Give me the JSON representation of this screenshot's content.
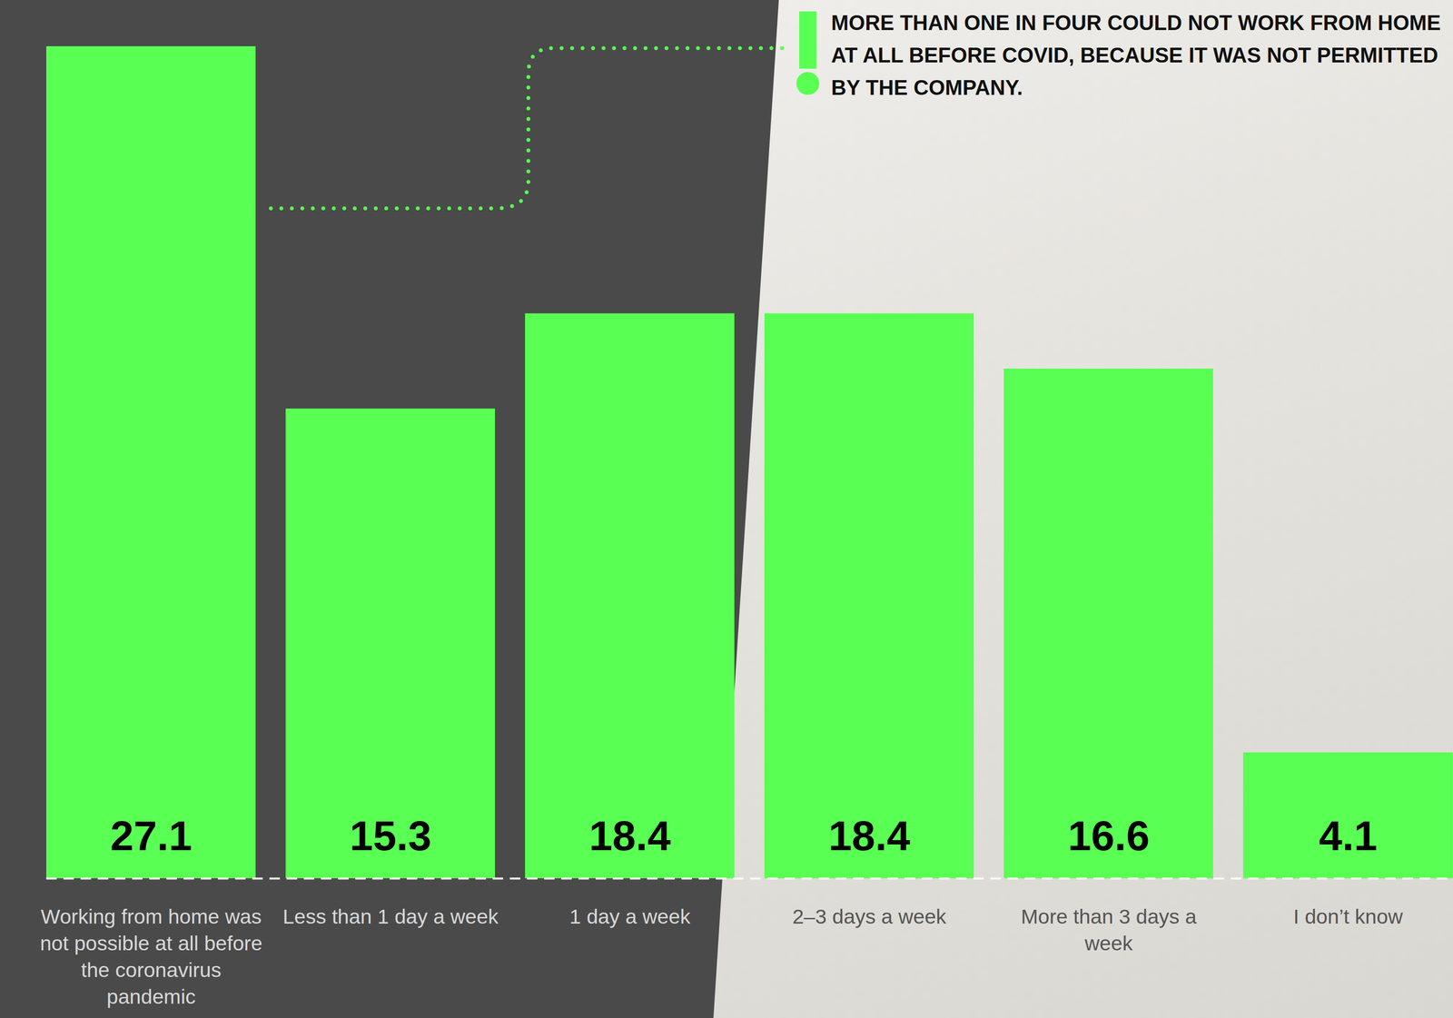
{
  "chart_data": {
    "type": "bar",
    "categories": [
      "Working from home was not possible at all before the coronavirus pandemic",
      "Less than 1 day a week",
      "1 day a week",
      "2–3 days a week",
      "More than 3 days a week",
      "I don’t know"
    ],
    "values": [
      27.1,
      15.3,
      18.4,
      18.4,
      16.6,
      4.1
    ],
    "color": "#59ff52",
    "ylim": [
      0,
      27.1
    ],
    "data_labels": true,
    "tick_labels": "x",
    "annotation": "MORE THAN ONE IN FOUR COULD NOT WORK FROM HOME AT ALL BEFORE COVID, BECAUSE IT WAS NOT PERMITTED BY THE COMPANY."
  }
}
